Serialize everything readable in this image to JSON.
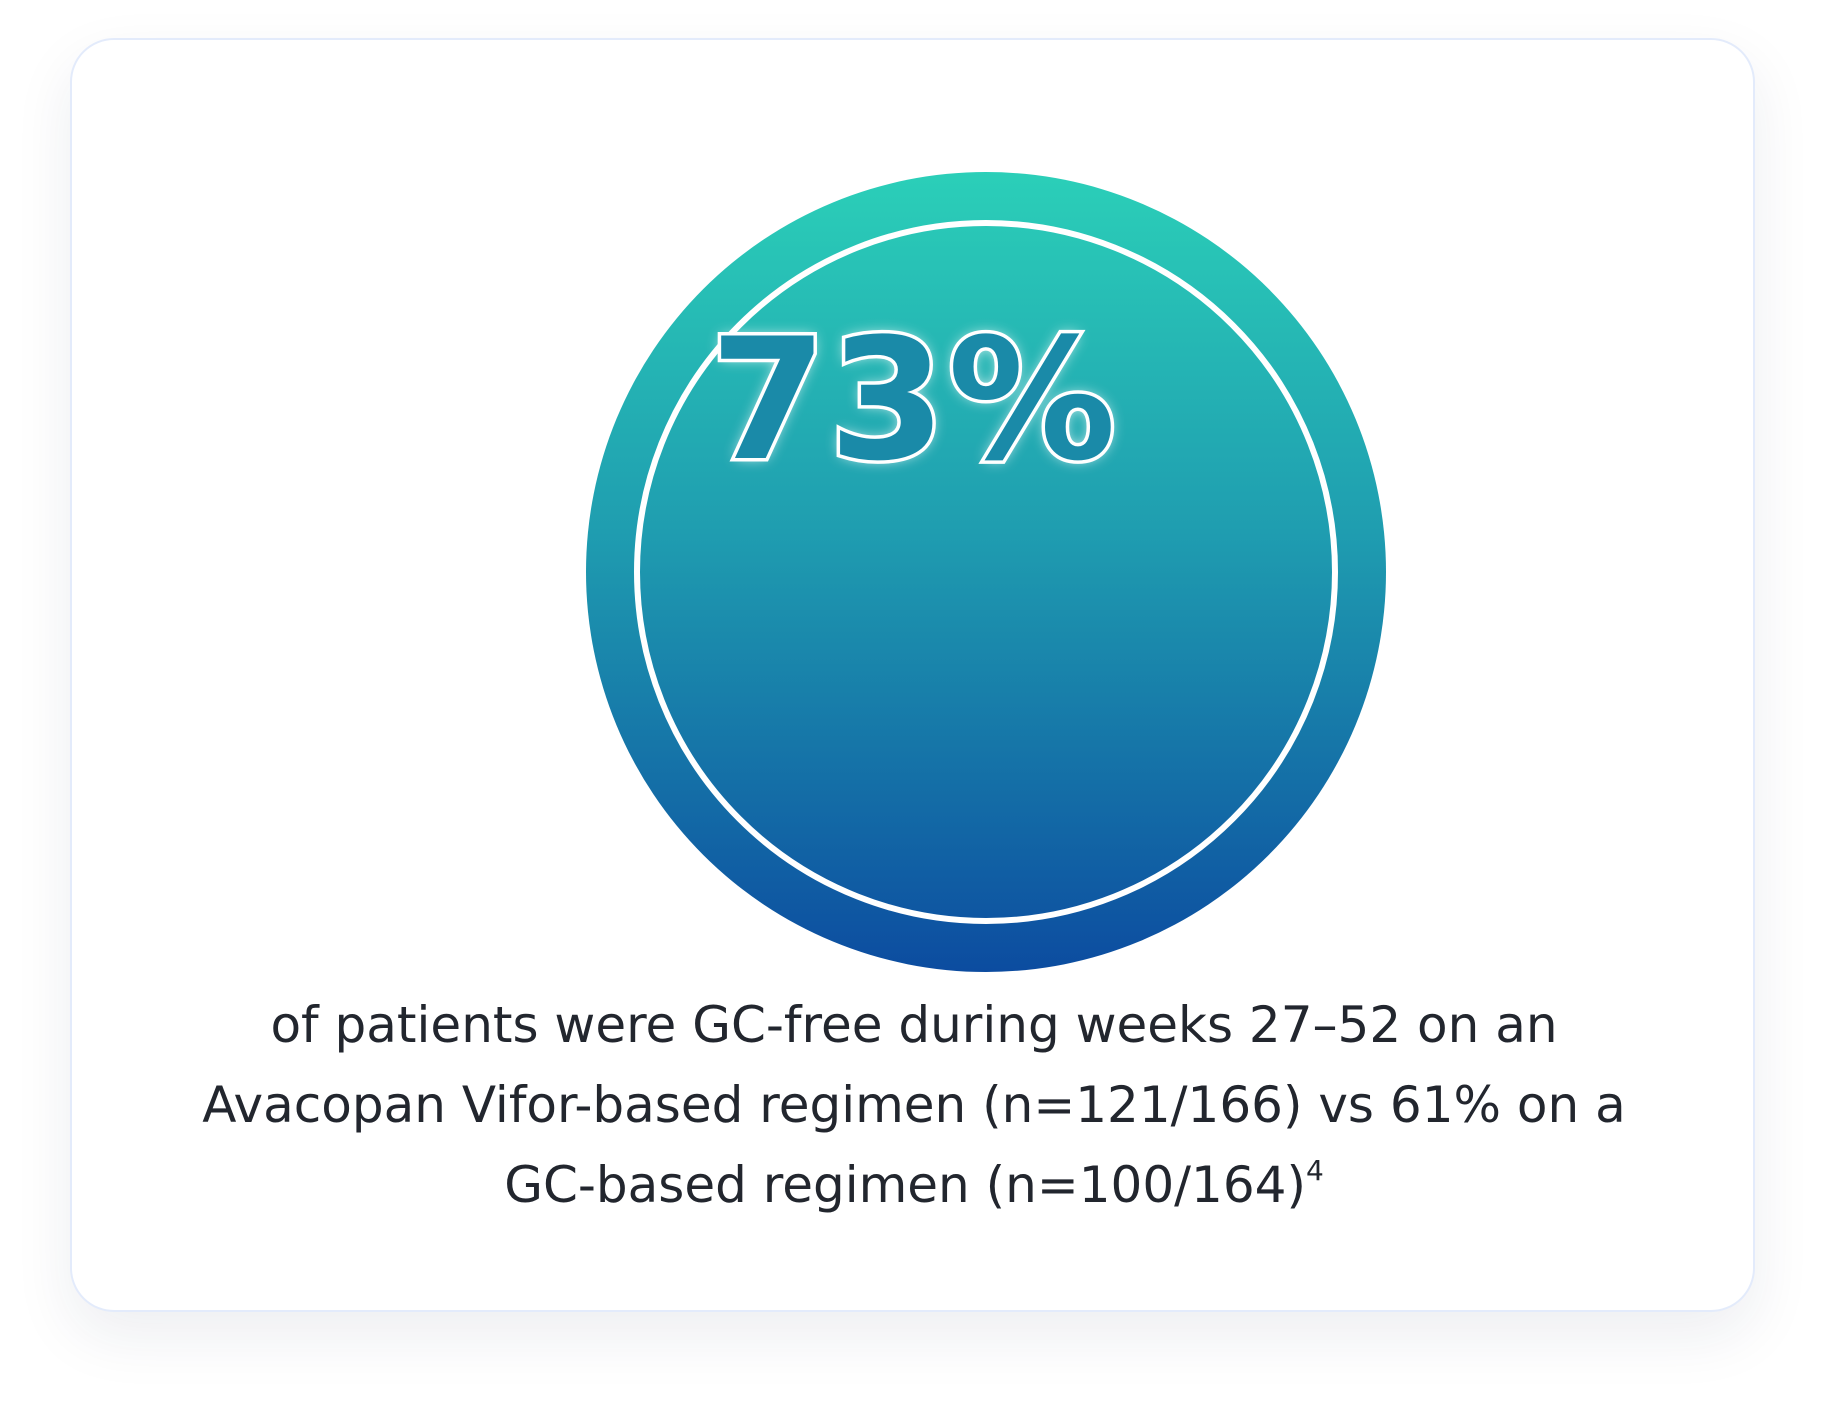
{
  "stat": "73%",
  "caption": {
    "lines": [
      "of patients were GC-free during weeks 27–52 on an",
      "Avacopan Vifor-based regimen (n=121/166) vs 61% on a",
      "GC-based regimen (n=100/164)"
    ],
    "footnote": "4"
  }
}
